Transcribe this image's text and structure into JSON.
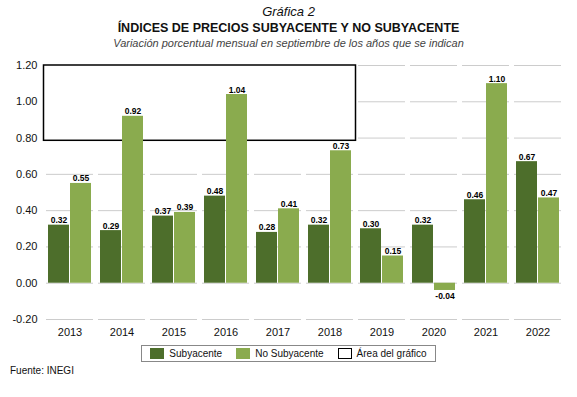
{
  "chart_data": {
    "type": "bar",
    "title": [
      "Gráfica 2",
      "ÍNDICES DE PRECIOS SUBYACENTE Y NO SUBYACENTE"
    ],
    "subtitle": "Variación porcentual mensual en septiembre de los años que se indican",
    "categories": [
      "2013",
      "2014",
      "2015",
      "2016",
      "2017",
      "2018",
      "2019",
      "2020",
      "2021",
      "2022"
    ],
    "series": [
      {
        "name": "Subyacente",
        "color": "#4d6e2b",
        "values": [
          0.32,
          0.29,
          0.37,
          0.48,
          0.28,
          0.32,
          0.3,
          0.32,
          0.46,
          0.67
        ],
        "value_labels": [
          "0.32",
          "0.29",
          "0.37",
          "0.48",
          "0.28",
          "0.32",
          "0.30",
          "0.32",
          "0.46",
          "0.67"
        ]
      },
      {
        "name": "No Subyacente",
        "color": "#8aab4e",
        "values": [
          0.55,
          0.92,
          0.39,
          1.04,
          0.41,
          0.73,
          0.15,
          -0.04,
          1.1,
          0.47
        ],
        "value_labels": [
          "0.55",
          "0.92",
          "0.39",
          "1.04",
          "0.41",
          "0.73",
          "0.15",
          "-0.04",
          "1.10",
          "0.47"
        ]
      }
    ],
    "ylim": [
      -0.2,
      1.2
    ],
    "yticks": [
      {
        "value": -0.2,
        "label": "-0.20"
      },
      {
        "value": 0.0,
        "label": "0.00"
      },
      {
        "value": 0.2,
        "label": "0.20"
      },
      {
        "value": 0.4,
        "label": "0.40"
      },
      {
        "value": 0.6,
        "label": "0.60"
      },
      {
        "value": 0.8,
        "label": "0.80"
      },
      {
        "value": 1.0,
        "label": "1.00"
      },
      {
        "value": 1.2,
        "label": "1.20"
      }
    ],
    "grid": true,
    "legend": "bottom",
    "data_labels": true,
    "annotations": [
      {
        "type": "rect",
        "label": "Área del gráfico",
        "x": [
          "2013",
          "2018"
        ],
        "y": [
          0.785,
          1.215
        ]
      },
      {
        "type": "text",
        "text": "Fuente: INEGI"
      }
    ]
  }
}
